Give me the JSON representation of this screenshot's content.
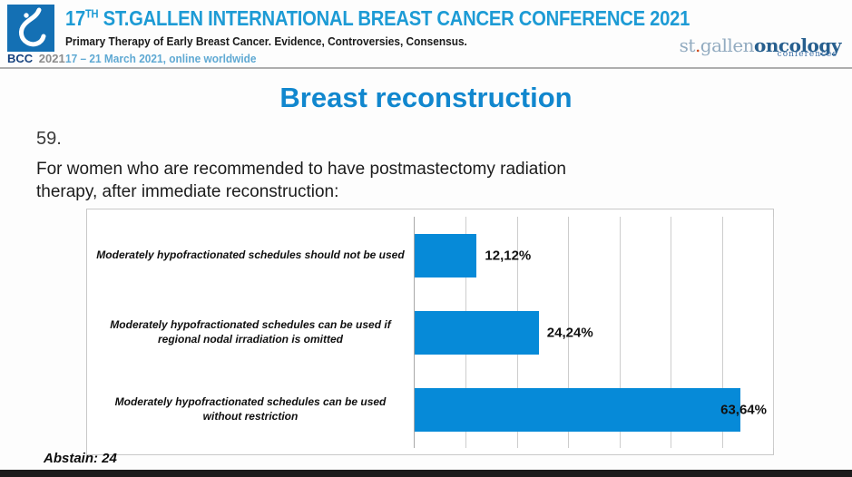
{
  "header": {
    "logo": {
      "line1": "BCC",
      "line2": "2021",
      "square_color": "#1470b4"
    },
    "title": {
      "prefix": "17",
      "sup": "TH",
      "rest": " ST.GALLEN INTERNATIONAL BREAST CANCER CONFERENCE 2021"
    },
    "subtitle": "Primary Therapy of Early Breast Cancer. Evidence, Controversies, Consensus.",
    "dates": "17 – 21 March 2021, online worldwide",
    "brand": {
      "st": "st",
      "dot": ".",
      "gallen": "gallen",
      "oncology": "oncology",
      "conferences": "conferences"
    }
  },
  "slide": {
    "title": "Breast reconstruction",
    "question_number": "59.",
    "question_lines": [
      "For women who are recommended to have postmastectomy radiation",
      "therapy, after immediate reconstruction:"
    ],
    "abstain_note": "Abstain: 24"
  },
  "chart_data": {
    "type": "bar",
    "orientation": "horizontal",
    "title": "",
    "categories": [
      "Moderately hypofractionated schedules should not be used",
      "Moderately hypofractionated schedules can be used if regional nodal irradiation is omitted",
      "Moderately hypofractionated schedules can be used without restriction"
    ],
    "values": [
      12.12,
      24.24,
      63.64
    ],
    "value_labels": [
      "12,12%",
      "24,24%",
      "63,64%"
    ],
    "xlim": [
      0,
      70
    ],
    "gridline_step": 10,
    "grid": true,
    "legend_position": "none",
    "bar_color": "#068ad8",
    "note": "Abstain: 24"
  }
}
